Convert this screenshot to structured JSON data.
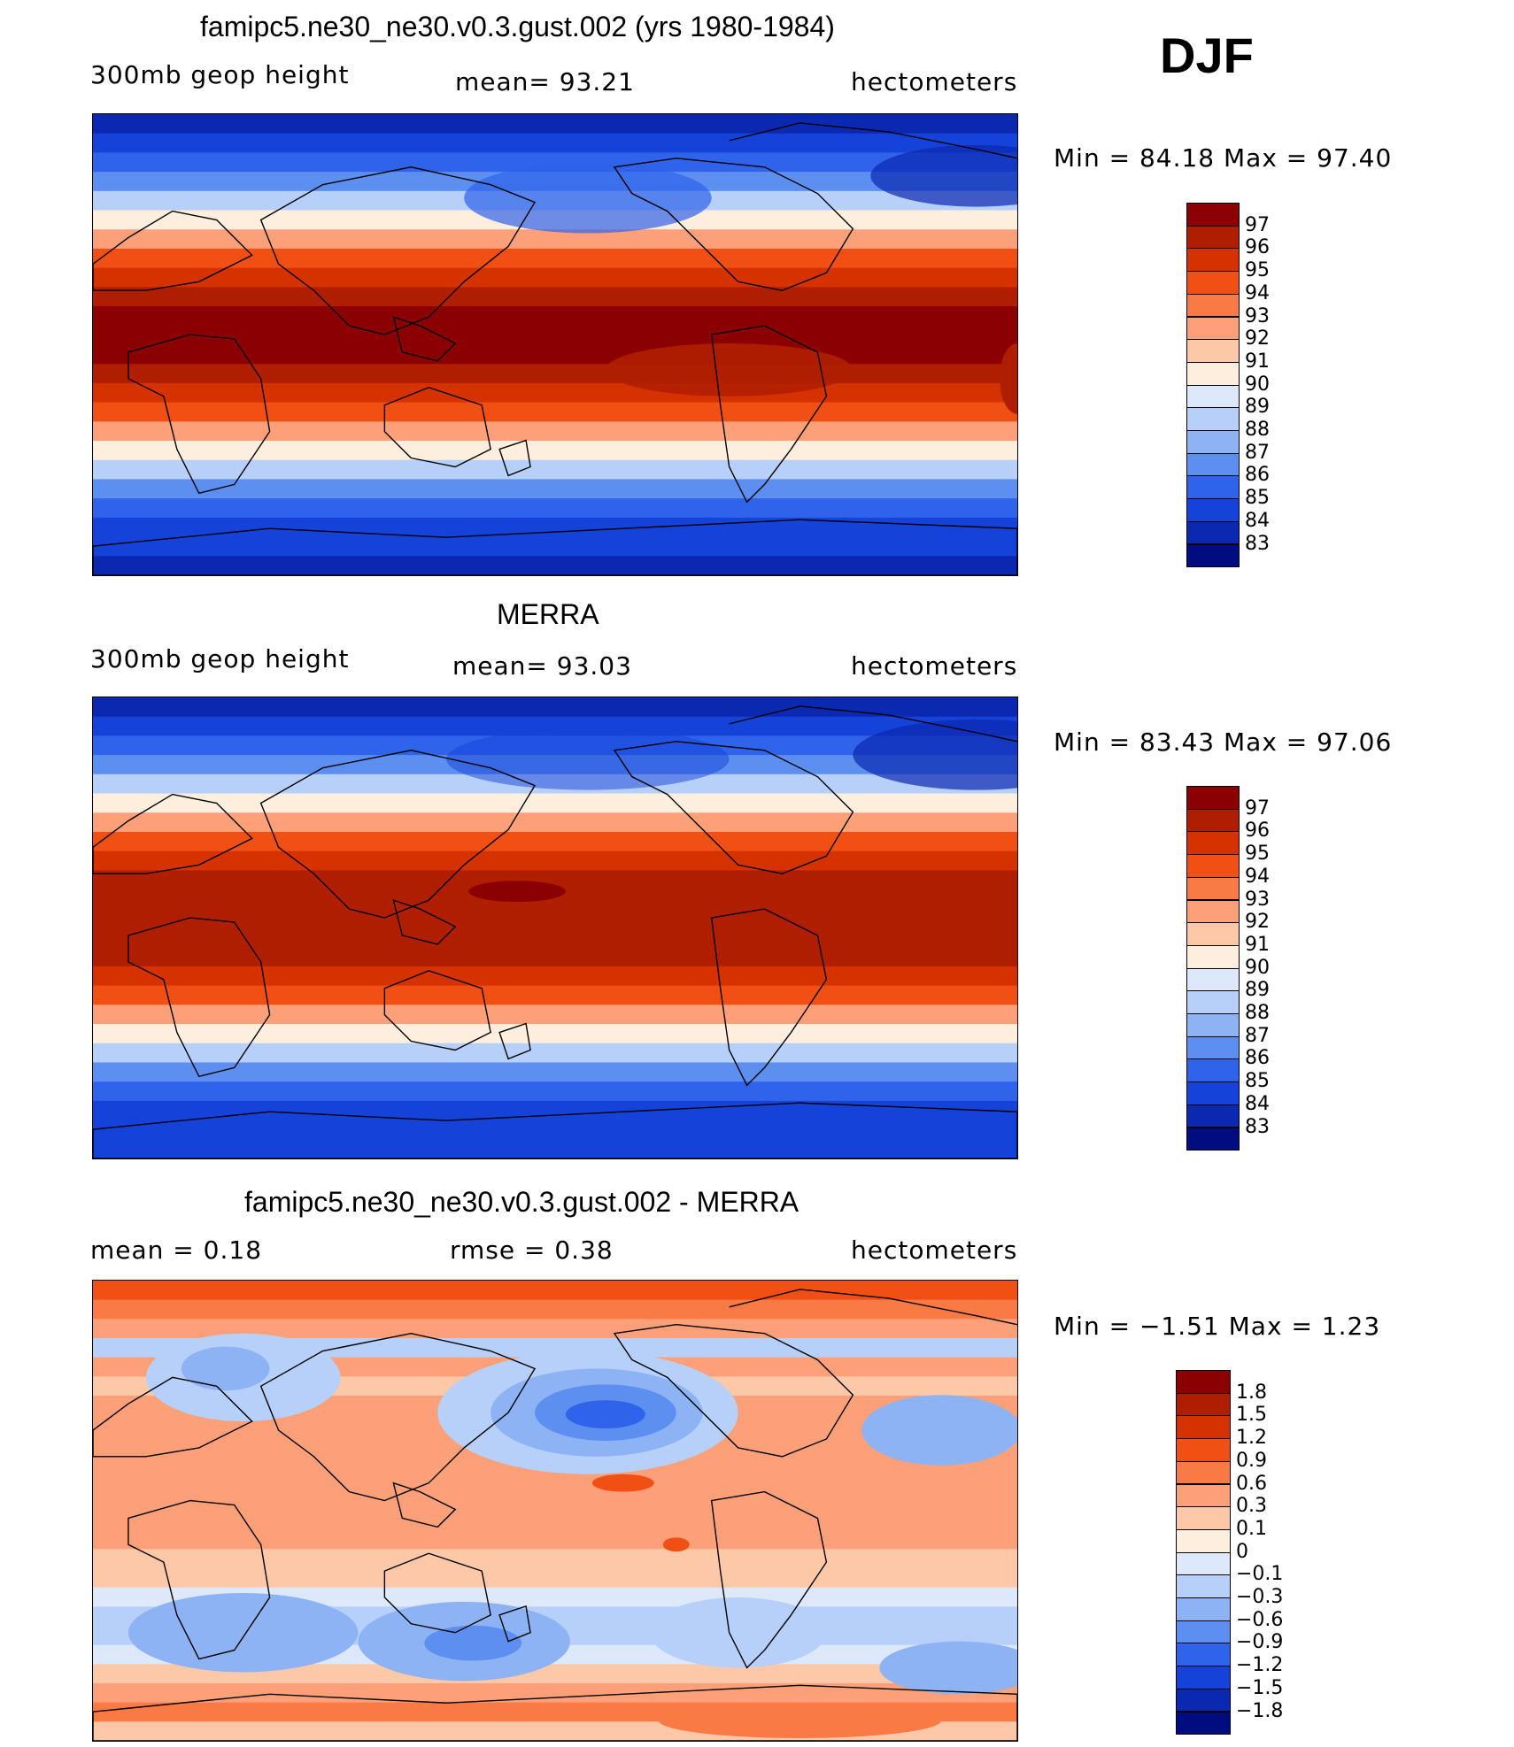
{
  "season": "DJF",
  "panels": [
    {
      "id": "model",
      "title": "famipc5.ne30_ne30.v0.3.gust.002 (yrs 1980-1984)",
      "left_label": "300mb  geop  height",
      "center_label": "mean=   93.21",
      "right_label": "hectometers",
      "minmax": "Min  =    84.18  Max  =    97.40",
      "colorbar": {
        "labels": [
          "97",
          "96",
          "95",
          "94",
          "93",
          "92",
          "91",
          "90",
          "89",
          "88",
          "87",
          "86",
          "85",
          "84",
          "83"
        ],
        "colors": [
          "#8b0000",
          "#b01e00",
          "#d63200",
          "#f05014",
          "#fa7a46",
          "#fca07a",
          "#fdc8a8",
          "#feeede",
          "#dde9fb",
          "#b6d0fa",
          "#8db3f5",
          "#5c8ff0",
          "#2f63ea",
          "#1542d8",
          "#0a28b0",
          "#000c80"
        ]
      },
      "zonal_bands": [
        "#0a28b0",
        "#1542d8",
        "#2f63ea",
        "#5c8ff0",
        "#b6d0fa",
        "#feeede",
        "#fca07a",
        "#f05014",
        "#d63200",
        "#b01e00",
        "#8b0000",
        "#8b0000",
        "#8b0000",
        "#b01e00",
        "#d63200",
        "#f05014",
        "#fca07a",
        "#feeede",
        "#b6d0fa",
        "#5c8ff0",
        "#2f63ea",
        "#1542d8",
        "#1542d8",
        "#0a28b0"
      ]
    },
    {
      "id": "obs",
      "title": "MERRA",
      "left_label": "300mb  geop  height",
      "center_label": "mean=   93.03",
      "right_label": "hectometers",
      "minmax": "Min  =    83.43  Max  =    97.06",
      "colorbar": {
        "labels": [
          "97",
          "96",
          "95",
          "94",
          "93",
          "92",
          "91",
          "90",
          "89",
          "88",
          "87",
          "86",
          "85",
          "84",
          "83"
        ],
        "colors": [
          "#8b0000",
          "#b01e00",
          "#d63200",
          "#f05014",
          "#fa7a46",
          "#fca07a",
          "#fdc8a8",
          "#feeede",
          "#dde9fb",
          "#b6d0fa",
          "#8db3f5",
          "#5c8ff0",
          "#2f63ea",
          "#1542d8",
          "#0a28b0",
          "#000c80"
        ]
      },
      "zonal_bands": [
        "#0a28b0",
        "#1542d8",
        "#2f63ea",
        "#5c8ff0",
        "#b6d0fa",
        "#feeede",
        "#fca07a",
        "#f05014",
        "#d63200",
        "#b01e00",
        "#b01e00",
        "#b01e00",
        "#b01e00",
        "#b01e00",
        "#d63200",
        "#f05014",
        "#fca07a",
        "#feeede",
        "#b6d0fa",
        "#5c8ff0",
        "#2f63ea",
        "#1542d8",
        "#1542d8",
        "#1542d8"
      ]
    },
    {
      "id": "diff",
      "title": "famipc5.ne30_ne30.v0.3.gust.002 - MERRA",
      "left_label": "mean  =      0.18",
      "center_label": "rmse  =     0.38",
      "right_label": "hectometers",
      "minmax": "Min  =   −1.51  Max  =      1.23",
      "colorbar": {
        "labels": [
          "1.8",
          "1.5",
          "1.2",
          "0.9",
          "0.6",
          "0.3",
          "0.1",
          "0",
          "−0.1",
          "−0.3",
          "−0.6",
          "−0.9",
          "−1.2",
          "−1.5",
          "−1.8"
        ],
        "colors": [
          "#8b0000",
          "#b01e00",
          "#d63200",
          "#f05014",
          "#fa7a46",
          "#fca07a",
          "#fdc8a8",
          "#feeede",
          "#dde9fb",
          "#b6d0fa",
          "#8db3f5",
          "#5c8ff0",
          "#2f63ea",
          "#1542d8",
          "#0a28b0",
          "#000c80"
        ]
      },
      "zonal_bands": [
        "#f05014",
        "#fa7a46",
        "#fca07a",
        "#b6d0fa",
        "#fca07a",
        "#fdc8a8",
        "#fca07a",
        "#fca07a",
        "#fca07a",
        "#fca07a",
        "#fca07a",
        "#fca07a",
        "#fca07a",
        "#fca07a",
        "#fdc8a8",
        "#fdc8a8",
        "#dde9fb",
        "#b6d0fa",
        "#b6d0fa",
        "#dde9fb",
        "#fdc8a8",
        "#fca07a",
        "#fa7a46",
        "#fdc8a8"
      ]
    }
  ]
}
